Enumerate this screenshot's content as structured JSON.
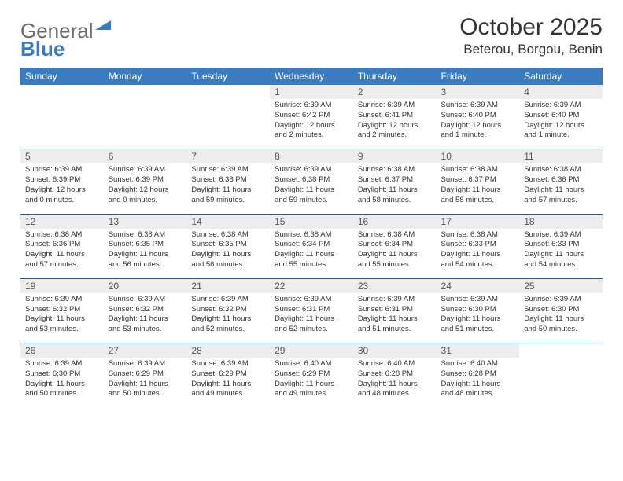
{
  "logo": {
    "part1": "General",
    "part2": "Blue"
  },
  "title": "October 2025",
  "location": "Beterou, Borgou, Benin",
  "colors": {
    "header_bg": "#3b7bbf",
    "header_text": "#ffffff",
    "daynum_bg": "#ededed",
    "daynum_text": "#555555",
    "border": "#2a5a8a",
    "body_text": "#333333",
    "logo_gray": "#6b6b6b",
    "logo_blue": "#3b7bbf"
  },
  "daysOfWeek": [
    "Sunday",
    "Monday",
    "Tuesday",
    "Wednesday",
    "Thursday",
    "Friday",
    "Saturday"
  ],
  "weeks": [
    [
      null,
      null,
      null,
      {
        "n": "1",
        "sr": "6:39 AM",
        "ss": "6:42 PM",
        "dl": "12 hours and 2 minutes."
      },
      {
        "n": "2",
        "sr": "6:39 AM",
        "ss": "6:41 PM",
        "dl": "12 hours and 2 minutes."
      },
      {
        "n": "3",
        "sr": "6:39 AM",
        "ss": "6:40 PM",
        "dl": "12 hours and 1 minute."
      },
      {
        "n": "4",
        "sr": "6:39 AM",
        "ss": "6:40 PM",
        "dl": "12 hours and 1 minute."
      }
    ],
    [
      {
        "n": "5",
        "sr": "6:39 AM",
        "ss": "6:39 PM",
        "dl": "12 hours and 0 minutes."
      },
      {
        "n": "6",
        "sr": "6:39 AM",
        "ss": "6:39 PM",
        "dl": "12 hours and 0 minutes."
      },
      {
        "n": "7",
        "sr": "6:39 AM",
        "ss": "6:38 PM",
        "dl": "11 hours and 59 minutes."
      },
      {
        "n": "8",
        "sr": "6:39 AM",
        "ss": "6:38 PM",
        "dl": "11 hours and 59 minutes."
      },
      {
        "n": "9",
        "sr": "6:38 AM",
        "ss": "6:37 PM",
        "dl": "11 hours and 58 minutes."
      },
      {
        "n": "10",
        "sr": "6:38 AM",
        "ss": "6:37 PM",
        "dl": "11 hours and 58 minutes."
      },
      {
        "n": "11",
        "sr": "6:38 AM",
        "ss": "6:36 PM",
        "dl": "11 hours and 57 minutes."
      }
    ],
    [
      {
        "n": "12",
        "sr": "6:38 AM",
        "ss": "6:36 PM",
        "dl": "11 hours and 57 minutes."
      },
      {
        "n": "13",
        "sr": "6:38 AM",
        "ss": "6:35 PM",
        "dl": "11 hours and 56 minutes."
      },
      {
        "n": "14",
        "sr": "6:38 AM",
        "ss": "6:35 PM",
        "dl": "11 hours and 56 minutes."
      },
      {
        "n": "15",
        "sr": "6:38 AM",
        "ss": "6:34 PM",
        "dl": "11 hours and 55 minutes."
      },
      {
        "n": "16",
        "sr": "6:38 AM",
        "ss": "6:34 PM",
        "dl": "11 hours and 55 minutes."
      },
      {
        "n": "17",
        "sr": "6:38 AM",
        "ss": "6:33 PM",
        "dl": "11 hours and 54 minutes."
      },
      {
        "n": "18",
        "sr": "6:39 AM",
        "ss": "6:33 PM",
        "dl": "11 hours and 54 minutes."
      }
    ],
    [
      {
        "n": "19",
        "sr": "6:39 AM",
        "ss": "6:32 PM",
        "dl": "11 hours and 53 minutes."
      },
      {
        "n": "20",
        "sr": "6:39 AM",
        "ss": "6:32 PM",
        "dl": "11 hours and 53 minutes."
      },
      {
        "n": "21",
        "sr": "6:39 AM",
        "ss": "6:32 PM",
        "dl": "11 hours and 52 minutes."
      },
      {
        "n": "22",
        "sr": "6:39 AM",
        "ss": "6:31 PM",
        "dl": "11 hours and 52 minutes."
      },
      {
        "n": "23",
        "sr": "6:39 AM",
        "ss": "6:31 PM",
        "dl": "11 hours and 51 minutes."
      },
      {
        "n": "24",
        "sr": "6:39 AM",
        "ss": "6:30 PM",
        "dl": "11 hours and 51 minutes."
      },
      {
        "n": "25",
        "sr": "6:39 AM",
        "ss": "6:30 PM",
        "dl": "11 hours and 50 minutes."
      }
    ],
    [
      {
        "n": "26",
        "sr": "6:39 AM",
        "ss": "6:30 PM",
        "dl": "11 hours and 50 minutes."
      },
      {
        "n": "27",
        "sr": "6:39 AM",
        "ss": "6:29 PM",
        "dl": "11 hours and 50 minutes."
      },
      {
        "n": "28",
        "sr": "6:39 AM",
        "ss": "6:29 PM",
        "dl": "11 hours and 49 minutes."
      },
      {
        "n": "29",
        "sr": "6:40 AM",
        "ss": "6:29 PM",
        "dl": "11 hours and 49 minutes."
      },
      {
        "n": "30",
        "sr": "6:40 AM",
        "ss": "6:28 PM",
        "dl": "11 hours and 48 minutes."
      },
      {
        "n": "31",
        "sr": "6:40 AM",
        "ss": "6:28 PM",
        "dl": "11 hours and 48 minutes."
      },
      null
    ]
  ],
  "labels": {
    "sunrise": "Sunrise:",
    "sunset": "Sunset:",
    "daylight": "Daylight:"
  }
}
